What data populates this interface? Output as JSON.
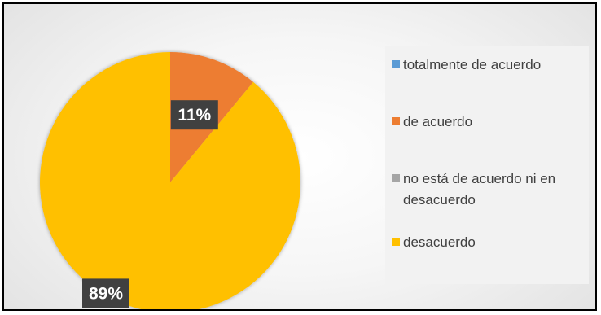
{
  "chart_data": {
    "type": "pie",
    "categories": [
      "totalmente de acuerdo",
      "de acuerdo",
      "no está de acuerdo ni en desacuerdo",
      "desacuerdo"
    ],
    "values": [
      0,
      11,
      0,
      89
    ],
    "data_labels": [
      "",
      "11%",
      "",
      "89%"
    ],
    "colors": [
      "#5b9bd5",
      "#ed7d31",
      "#a5a5a5",
      "#ffc000"
    ],
    "legend_position": "right"
  }
}
